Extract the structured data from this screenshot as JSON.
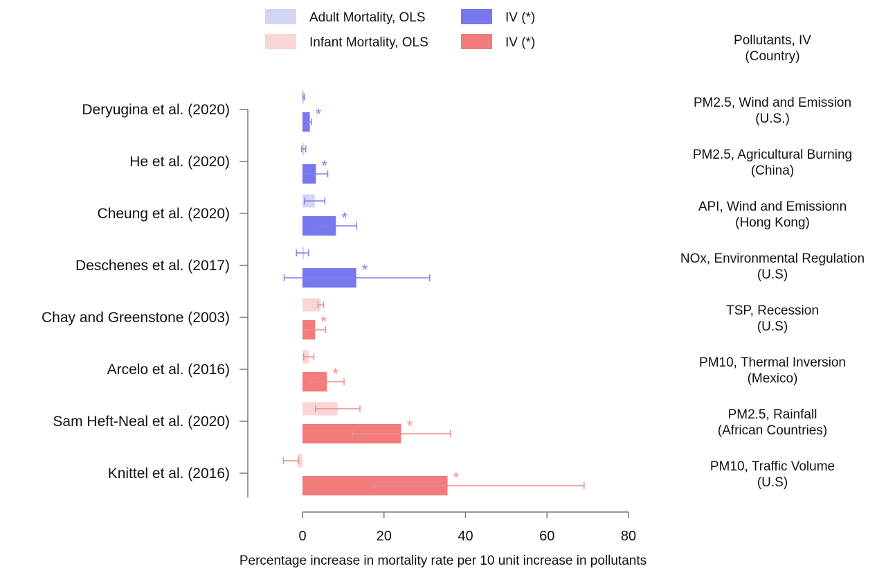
{
  "legend": {
    "adult_ols": "Adult Mortality, OLS",
    "adult_iv": "IV (*)",
    "infant_ols": "Infant Mortality, OLS",
    "infant_iv": "IV (*)"
  },
  "right_header": {
    "line1": "Pollutants, IV",
    "line2": "(Country)"
  },
  "colors": {
    "adult_ols": "#d4d4f5",
    "adult_iv": "#7878ee",
    "adult_line": "#7f7fe6",
    "infant_ols": "#f9d6d6",
    "infant_iv": "#f27b7b",
    "infant_line": "#ec8c8c"
  },
  "chart_data": {
    "type": "bar",
    "orientation": "horizontal",
    "xlabel": "Percentage increase in mortality rate per 10 unit increase in pollutants",
    "xlim": [
      -5,
      80
    ],
    "xticks": [
      0,
      20,
      40,
      60,
      80
    ],
    "iv_marker": "*",
    "studies": [
      {
        "name": "Deryugina et al. (2020)",
        "mortality": "adult",
        "pollutant": "PM2.5, Wind and Emission",
        "country": "(U.S.)",
        "ols": {
          "value": 0.3,
          "ci": [
            0.1,
            0.5
          ]
        },
        "iv": {
          "value": 1.8,
          "ci": [
            1.2,
            2.2
          ]
        }
      },
      {
        "name": "He et al. (2020)",
        "mortality": "adult",
        "pollutant": "PM2.5, Agricultural Burning",
        "country": "(China)",
        "ols": {
          "value": 0.4,
          "ci": [
            -0.2,
            0.8
          ]
        },
        "iv": {
          "value": 3.3,
          "ci": [
            0.5,
            6.2
          ]
        }
      },
      {
        "name": "Cheung et al. (2020)",
        "mortality": "adult",
        "pollutant": "API, Wind and Emissionn",
        "country": "(Hong Kong)",
        "ols": {
          "value": 3.0,
          "ci": [
            0.5,
            5.5
          ]
        },
        "iv": {
          "value": 8.2,
          "ci": [
            2.8,
            13.3
          ]
        }
      },
      {
        "name": "Deschenes et al. (2017)",
        "mortality": "adult",
        "pollutant": "NOx, Environmental Regulation",
        "country": "(U.S)",
        "ols": {
          "value": 0.2,
          "ci": [
            -1.5,
            1.5
          ]
        },
        "iv": {
          "value": 13.2,
          "ci": [
            -4.5,
            31.2
          ]
        }
      },
      {
        "name": "Chay and Greenstone (2003)",
        "mortality": "infant",
        "pollutant": "TSP, Recession",
        "country": "(U.S)",
        "ols": {
          "value": 4.5,
          "ci": [
            3.8,
            5.2
          ]
        },
        "iv": {
          "value": 3.1,
          "ci": [
            0.5,
            5.7
          ]
        }
      },
      {
        "name": "Arcelo et al. (2016)",
        "mortality": "infant",
        "pollutant": "PM10, Thermal Inversion",
        "country": "(Mexico)",
        "ols": {
          "value": 1.5,
          "ci": [
            0.3,
            2.8
          ]
        },
        "iv": {
          "value": 6.0,
          "ci": [
            1.9,
            10.2
          ]
        }
      },
      {
        "name": "Sam Heft-Neal et al. (2020)",
        "mortality": "infant",
        "pollutant": "PM2.5, Rainfall",
        "country": "(African Countries)",
        "ols": {
          "value": 8.6,
          "ci": [
            3.2,
            14.1
          ]
        },
        "iv": {
          "value": 24.2,
          "ci": [
            12.3,
            36.3
          ]
        }
      },
      {
        "name": "Knittel et al. (2016)",
        "mortality": "infant",
        "pollutant": "PM10, Traffic Volume",
        "country": "(U.S)",
        "ols": {
          "value": -1.2,
          "ci": [
            -4.7,
            -1.0
          ]
        },
        "iv": {
          "value": 35.6,
          "ci": [
            17.2,
            69.1
          ]
        }
      }
    ]
  }
}
